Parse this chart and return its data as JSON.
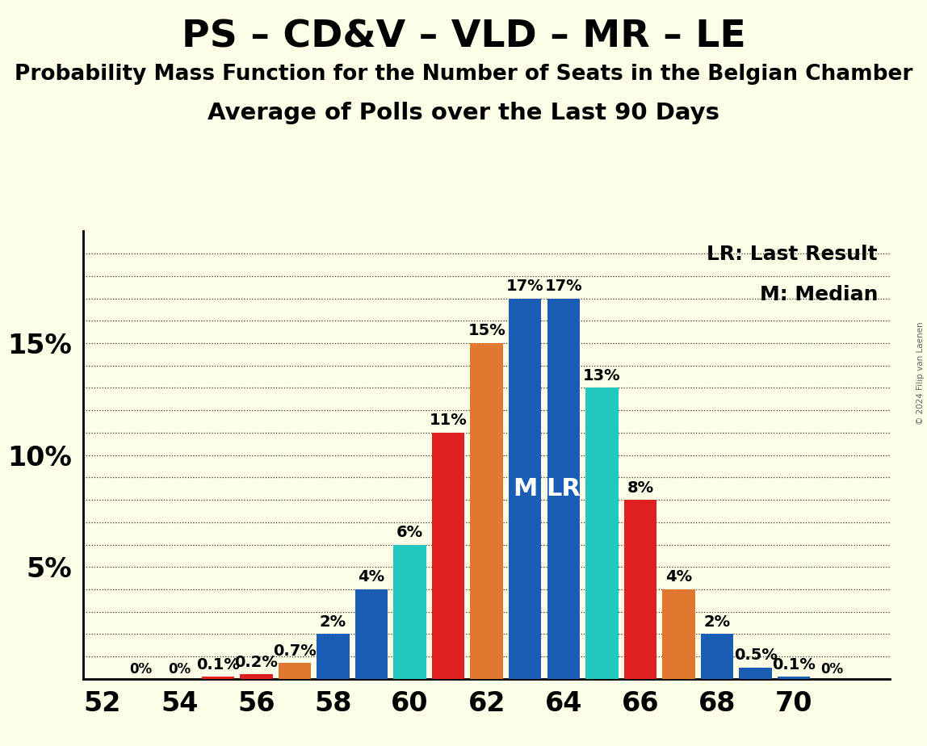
{
  "title1": "PS – CD&V – VLD – MR – LE",
  "title2": "Probability Mass Function for the Number of Seats in the Belgian Chamber",
  "title3": "Average of Polls over the Last 90 Days",
  "copyright": "© 2024 Filip van Laenen",
  "background_color": "#FEFDE7",
  "bars": [
    {
      "x": 53,
      "value": 0.0,
      "color": "#1a5db5",
      "label": "0%",
      "show_zero": true
    },
    {
      "x": 54,
      "value": 0.0,
      "color": "#1a5db5",
      "label": "0%",
      "show_zero": true
    },
    {
      "x": 55,
      "value": 0.1,
      "color": "#e02020",
      "label": "0.1%",
      "show_zero": false
    },
    {
      "x": 56,
      "value": 0.2,
      "color": "#e02020",
      "label": "0.2%",
      "show_zero": false
    },
    {
      "x": 57,
      "value": 0.7,
      "color": "#e07830",
      "label": "0.7%",
      "show_zero": false
    },
    {
      "x": 58,
      "value": 2.0,
      "color": "#1a5db5",
      "label": "2%",
      "show_zero": false
    },
    {
      "x": 59,
      "value": 4.0,
      "color": "#1a5db5",
      "label": "4%",
      "show_zero": false
    },
    {
      "x": 60,
      "value": 6.0,
      "color": "#20c8c0",
      "label": "6%",
      "show_zero": false
    },
    {
      "x": 61,
      "value": 11.0,
      "color": "#e02020",
      "label": "11%",
      "show_zero": false
    },
    {
      "x": 62,
      "value": 15.0,
      "color": "#e07830",
      "label": "15%",
      "show_zero": false
    },
    {
      "x": 63,
      "value": 17.0,
      "color": "#1a5db5",
      "label": "17%",
      "show_zero": false,
      "marker": "M"
    },
    {
      "x": 64,
      "value": 17.0,
      "color": "#1a5db5",
      "label": "17%",
      "show_zero": false,
      "marker": "LR"
    },
    {
      "x": 65,
      "value": 13.0,
      "color": "#20c8c0",
      "label": "13%",
      "show_zero": false
    },
    {
      "x": 66,
      "value": 8.0,
      "color": "#e02020",
      "label": "8%",
      "show_zero": false
    },
    {
      "x": 67,
      "value": 4.0,
      "color": "#e07830",
      "label": "4%",
      "show_zero": false
    },
    {
      "x": 68,
      "value": 2.0,
      "color": "#1a5db5",
      "label": "2%",
      "show_zero": false
    },
    {
      "x": 69,
      "value": 0.5,
      "color": "#1a5db5",
      "label": "0.5%",
      "show_zero": false
    },
    {
      "x": 70,
      "value": 0.1,
      "color": "#1a5db5",
      "label": "0.1%",
      "show_zero": false
    },
    {
      "x": 71,
      "value": 0.0,
      "color": "#20c8c0",
      "label": "0%",
      "show_zero": true
    }
  ],
  "bar_width": 0.85,
  "xlim": [
    51.5,
    72.5
  ],
  "ylim": [
    0,
    20
  ],
  "xticks": [
    52,
    54,
    56,
    58,
    60,
    62,
    64,
    66,
    68,
    70
  ],
  "label_fontsize": 14,
  "tick_fontsize": 24,
  "legend_fontsize": 18,
  "title1_fontsize": 34,
  "title2_fontsize": 19,
  "title3_fontsize": 21,
  "marker_fontsize": 22
}
